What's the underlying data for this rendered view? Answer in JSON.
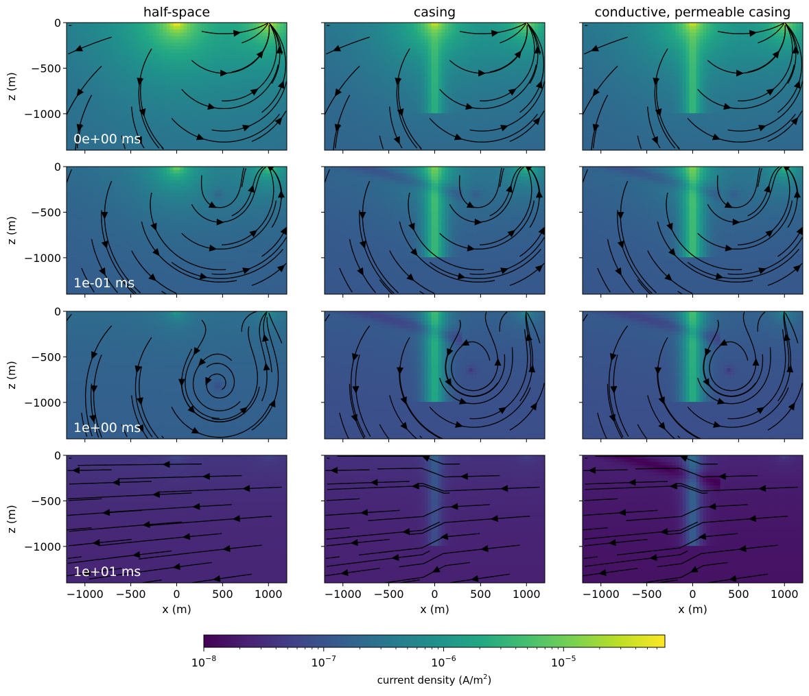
{
  "chart_data": {
    "type": "heatmap",
    "layout": {
      "rows": 4,
      "cols": 3
    },
    "column_titles": [
      "half-space",
      "casing",
      "conductive, permeable casing"
    ],
    "row_time_labels": [
      "0e+00 ms",
      "1e-01 ms",
      "1e+00 ms",
      "1e+01 ms"
    ],
    "xlabel": "x (m)",
    "ylabel": "z (m)",
    "xlim": [
      -1200,
      1200
    ],
    "ylim": [
      -1400,
      0
    ],
    "x_ticks": [
      -1000,
      -500,
      0,
      500,
      1000
    ],
    "x_tick_labels": [
      "−1000",
      "−500",
      "0",
      "500",
      "1000"
    ],
    "y_ticks": [
      0,
      -500,
      -1000
    ],
    "y_tick_labels": [
      "0",
      "−500",
      "−1000"
    ],
    "colormap": "viridis",
    "colorbar": {
      "scale": "log",
      "range": [
        1e-08,
        7e-05
      ],
      "ticks": [
        1e-08,
        1e-07,
        1e-06,
        1e-05
      ],
      "tick_bases": [
        "10",
        "10",
        "10",
        "10"
      ],
      "tick_exps": [
        "−8",
        "−7",
        "−6",
        "−5"
      ],
      "label_main": "current density (A/m",
      "label_sup": "2",
      "label_close": ")"
    },
    "annotations": {
      "source_electrode_x": 0,
      "return_electrode_x": 1000,
      "casing_x": 0,
      "casing_depth": -1000
    },
    "panels": [
      {
        "row": 0,
        "col": 0,
        "base": 1.4e-07,
        "peak_shallow": 6e-05,
        "casing_strength": 0,
        "vortex": null,
        "dark_band": 0
      },
      {
        "row": 0,
        "col": 1,
        "base": 1.3e-07,
        "peak_shallow": 3e-05,
        "casing_strength": 6e-06,
        "vortex": null,
        "dark_band": 0
      },
      {
        "row": 0,
        "col": 2,
        "base": 1.3e-07,
        "peak_shallow": 3e-05,
        "casing_strength": 8e-06,
        "vortex": null,
        "dark_band": 0
      },
      {
        "row": 1,
        "col": 0,
        "base": 1.2e-07,
        "peak_shallow": 1e-05,
        "casing_strength": 0,
        "vortex": {
          "x": 450,
          "z": -300
        },
        "dark_band": 0
      },
      {
        "row": 1,
        "col": 1,
        "base": 1e-07,
        "peak_shallow": 6e-06,
        "casing_strength": 9e-06,
        "vortex": {
          "x": 450,
          "z": -300
        },
        "dark_band": 1
      },
      {
        "row": 1,
        "col": 2,
        "base": 1e-07,
        "peak_shallow": 6e-06,
        "casing_strength": 1e-05,
        "vortex": {
          "x": 450,
          "z": -300
        },
        "dark_band": 1
      },
      {
        "row": 2,
        "col": 0,
        "base": 1.4e-07,
        "peak_shallow": 1e-06,
        "casing_strength": 0,
        "vortex": {
          "x": 450,
          "z": -820
        },
        "dark_band": 0
      },
      {
        "row": 2,
        "col": 1,
        "base": 8e-08,
        "peak_shallow": 1e-06,
        "casing_strength": 5e-06,
        "vortex": {
          "x": 400,
          "z": -650
        },
        "dark_band": 1
      },
      {
        "row": 2,
        "col": 2,
        "base": 8e-08,
        "peak_shallow": 1e-06,
        "casing_strength": 6e-06,
        "vortex": {
          "x": 400,
          "z": -650
        },
        "dark_band": 1
      },
      {
        "row": 3,
        "col": 0,
        "base": 2.5e-08,
        "peak_shallow": 4e-08,
        "casing_strength": 0,
        "vortex": null,
        "dark_band": 0
      },
      {
        "row": 3,
        "col": 1,
        "base": 2.2e-08,
        "peak_shallow": 4e-08,
        "casing_strength": 1.5e-07,
        "vortex": null,
        "dark_band": 0
      },
      {
        "row": 3,
        "col": 2,
        "base": 1.5e-08,
        "peak_shallow": 4e-08,
        "casing_strength": 3e-07,
        "vortex": null,
        "dark_band": 1
      }
    ]
  }
}
